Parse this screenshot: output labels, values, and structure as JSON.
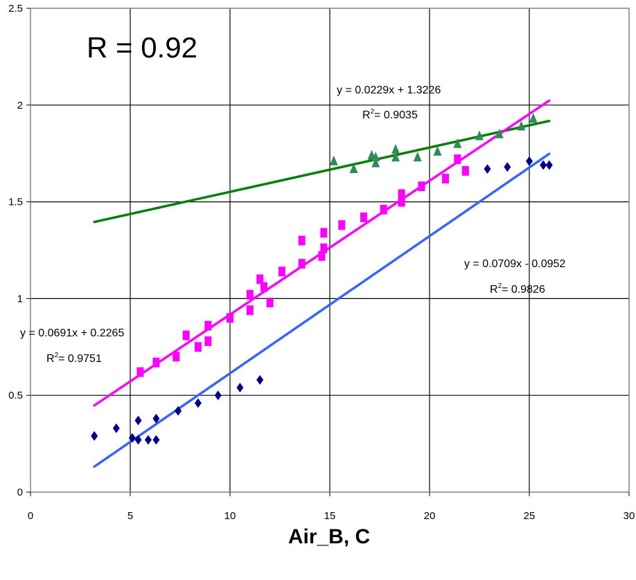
{
  "chart_data": {
    "type": "scatter",
    "title": "",
    "xlabel": "Air_B, C",
    "ylabel": "",
    "xlim": [
      0,
      30
    ],
    "ylim": [
      0,
      2.5
    ],
    "x_ticks": [
      "0",
      "5",
      "10",
      "15",
      "20",
      "25",
      "30"
    ],
    "y_ticks": [
      "0",
      "0.5",
      "1",
      "1.5",
      "2",
      "2.5"
    ],
    "grid": true,
    "legend": "none",
    "annotations": {
      "r_value": "R = 0.92",
      "green_eq": "y = 0.0229x + 1.3226",
      "green_r2": "= 0.9035",
      "blue_eq": "y = 0.0709x - 0.0952",
      "blue_r2": "= 0.9826",
      "pink_eq": "y = 0.0691x + 0.2265",
      "pink_r2": "= 0.9751"
    },
    "series": [
      {
        "marker": "diamond",
        "color": "#00008B",
        "points": [
          [
            3.2,
            0.29
          ],
          [
            4.3,
            0.33
          ],
          [
            5.1,
            0.28
          ],
          [
            5.4,
            0.37
          ],
          [
            5.4,
            0.27
          ],
          [
            5.9,
            0.27
          ],
          [
            6.3,
            0.38
          ],
          [
            6.3,
            0.27
          ],
          [
            7.4,
            0.42
          ],
          [
            8.4,
            0.46
          ],
          [
            9.4,
            0.5
          ],
          [
            10.5,
            0.54
          ],
          [
            11.5,
            0.58
          ],
          [
            22.9,
            1.67
          ],
          [
            23.9,
            1.68
          ],
          [
            25.0,
            1.71
          ],
          [
            25.7,
            1.69
          ],
          [
            26.0,
            1.69
          ]
        ]
      },
      {
        "marker": "square",
        "color": "#FF00FF",
        "points": [
          [
            5.5,
            0.62
          ],
          [
            6.3,
            0.67
          ],
          [
            7.3,
            0.7
          ],
          [
            7.8,
            0.81
          ],
          [
            8.4,
            0.75
          ],
          [
            8.9,
            0.78
          ],
          [
            8.9,
            0.86
          ],
          [
            10.0,
            0.9
          ],
          [
            11.0,
            0.94
          ],
          [
            11.0,
            1.02
          ],
          [
            11.5,
            1.1
          ],
          [
            11.7,
            1.06
          ],
          [
            12.0,
            0.98
          ],
          [
            12.6,
            1.14
          ],
          [
            13.6,
            1.18
          ],
          [
            13.6,
            1.3
          ],
          [
            14.6,
            1.22
          ],
          [
            14.7,
            1.34
          ],
          [
            14.7,
            1.26
          ],
          [
            15.6,
            1.38
          ],
          [
            16.7,
            1.42
          ],
          [
            17.7,
            1.46
          ],
          [
            18.6,
            1.5
          ],
          [
            18.6,
            1.54
          ],
          [
            19.6,
            1.58
          ],
          [
            20.8,
            1.62
          ],
          [
            21.4,
            1.72
          ],
          [
            21.8,
            1.66
          ]
        ]
      },
      {
        "marker": "triangle",
        "color": "#2E8B57",
        "points": [
          [
            15.2,
            1.71
          ],
          [
            16.2,
            1.67
          ],
          [
            17.1,
            1.74
          ],
          [
            17.3,
            1.7
          ],
          [
            17.3,
            1.73
          ],
          [
            18.3,
            1.73
          ],
          [
            18.3,
            1.77
          ],
          [
            19.4,
            1.73
          ],
          [
            20.4,
            1.76
          ],
          [
            21.4,
            1.8
          ],
          [
            22.5,
            1.84
          ],
          [
            23.5,
            1.85
          ],
          [
            24.6,
            1.89
          ],
          [
            25.2,
            1.93
          ]
        ]
      }
    ],
    "trendlines": [
      {
        "color": "#008000",
        "x": [
          3.2,
          26.0
        ],
        "slope": 0.0229,
        "intercept": 1.3226
      },
      {
        "color": "#FF00FF",
        "x": [
          3.2,
          26.0
        ],
        "slope": 0.0691,
        "intercept": 0.2265
      },
      {
        "color": "#3366FF",
        "x": [
          3.2,
          26.0
        ],
        "slope": 0.0709,
        "intercept": -0.0952
      }
    ]
  }
}
